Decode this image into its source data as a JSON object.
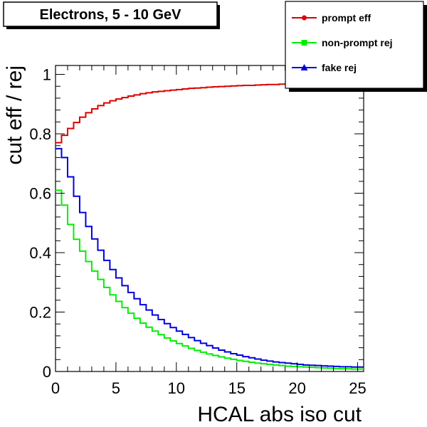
{
  "chart_data": {
    "type": "line",
    "title": "Electrons, 5 - 10 GeV",
    "xlabel": "HCAL abs iso cut",
    "ylabel": "cut eff / rej",
    "xlim": [
      0,
      25.5
    ],
    "ylim": [
      0,
      1.03
    ],
    "xticks": [
      0,
      5,
      10,
      15,
      20,
      25
    ],
    "xtick_labels": [
      "0",
      "5",
      "10",
      "15",
      "20",
      "25"
    ],
    "yticks": [
      0,
      0.2,
      0.4,
      0.6,
      0.8,
      1
    ],
    "ytick_labels": [
      "0",
      "0.2",
      "0.4",
      "0.6",
      "0.8",
      "1"
    ],
    "grid": false,
    "legend_position": "top-right",
    "bin_width": 0.5,
    "x": [
      0,
      0.5,
      1,
      1.5,
      2,
      2.5,
      3,
      3.5,
      4,
      4.5,
      5,
      5.5,
      6,
      6.5,
      7,
      7.5,
      8,
      8.5,
      9,
      9.5,
      10,
      10.5,
      11,
      11.5,
      12,
      12.5,
      13,
      13.5,
      14,
      14.5,
      15,
      15.5,
      16,
      16.5,
      17,
      17.5,
      18,
      18.5,
      19,
      19.5,
      20,
      20.5,
      21,
      21.5,
      22,
      22.5,
      23,
      23.5,
      24,
      24.5,
      25
    ],
    "series": [
      {
        "name": "prompt eff",
        "color": "#dd0000",
        "marker": "circle",
        "values": [
          0.77,
          0.795,
          0.818,
          0.838,
          0.856,
          0.871,
          0.884,
          0.895,
          0.904,
          0.911,
          0.917,
          0.922,
          0.927,
          0.931,
          0.935,
          0.938,
          0.941,
          0.943,
          0.945,
          0.947,
          0.949,
          0.951,
          0.953,
          0.954,
          0.955,
          0.957,
          0.958,
          0.959,
          0.96,
          0.961,
          0.962,
          0.963,
          0.963,
          0.964,
          0.965,
          0.966,
          0.966,
          0.967,
          0.968,
          0.968,
          0.969,
          0.97,
          0.97,
          0.971,
          0.971,
          0.972,
          0.972,
          0.973,
          0.973,
          0.974,
          0.974
        ]
      },
      {
        "name": "non-prompt rej",
        "color": "#00ee00",
        "marker": "square",
        "values": [
          0.61,
          0.56,
          0.495,
          0.445,
          0.405,
          0.37,
          0.338,
          0.31,
          0.283,
          0.258,
          0.236,
          0.215,
          0.196,
          0.179,
          0.163,
          0.149,
          0.136,
          0.124,
          0.113,
          0.103,
          0.094,
          0.086,
          0.078,
          0.071,
          0.065,
          0.059,
          0.054,
          0.049,
          0.045,
          0.041,
          0.037,
          0.034,
          0.031,
          0.028,
          0.026,
          0.024,
          0.022,
          0.02,
          0.018,
          0.017,
          0.016,
          0.015,
          0.014,
          0.013,
          0.012,
          0.011,
          0.01,
          0.009,
          0.009,
          0.008,
          0.008
        ]
      },
      {
        "name": "fake rej",
        "color": "#0000dd",
        "marker": "triangle",
        "values": [
          0.75,
          0.72,
          0.655,
          0.59,
          0.535,
          0.488,
          0.446,
          0.408,
          0.374,
          0.343,
          0.315,
          0.289,
          0.266,
          0.245,
          0.225,
          0.207,
          0.19,
          0.175,
          0.161,
          0.148,
          0.136,
          0.125,
          0.114,
          0.104,
          0.095,
          0.087,
          0.079,
          0.072,
          0.066,
          0.06,
          0.055,
          0.05,
          0.046,
          0.042,
          0.038,
          0.035,
          0.032,
          0.03,
          0.028,
          0.026,
          0.024,
          0.022,
          0.021,
          0.02,
          0.019,
          0.018,
          0.017,
          0.016,
          0.016,
          0.015,
          0.015
        ]
      }
    ]
  }
}
